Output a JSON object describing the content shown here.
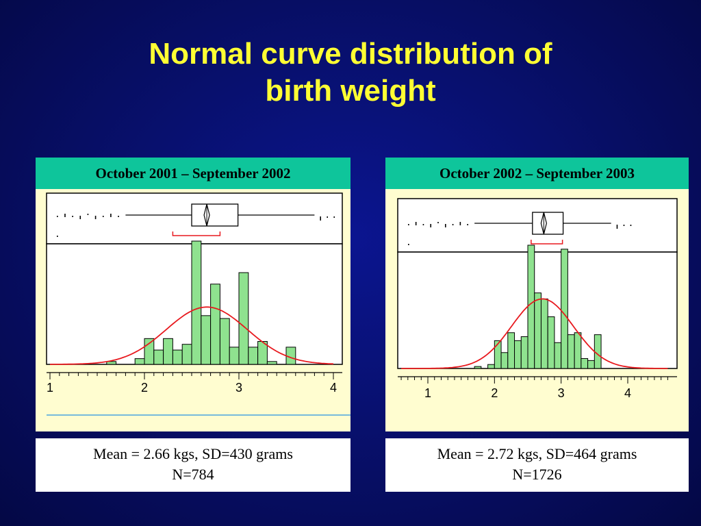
{
  "title": {
    "line1": "Normal curve distribution of",
    "line2": "birth weight"
  },
  "colors": {
    "background": "#08106e",
    "title": "#ffff33",
    "panel_header": "#0ec59b",
    "panel_bg": "#fffdd0",
    "bar_fill": "#8fe28f",
    "curve": "#e8191e",
    "median_bracket": "#e8191e"
  },
  "chart_data": [
    {
      "type": "bar",
      "title": "October 2001 – September 2002",
      "xlim": [
        1,
        4
      ],
      "x_ticks": [
        1,
        2,
        3,
        4
      ],
      "bin_width": 0.1,
      "bins": [
        {
          "x": 1.65,
          "count": 1
        },
        {
          "x": 1.95,
          "count": 2
        },
        {
          "x": 2.05,
          "count": 9
        },
        {
          "x": 2.15,
          "count": 5
        },
        {
          "x": 2.25,
          "count": 9
        },
        {
          "x": 2.35,
          "count": 5
        },
        {
          "x": 2.45,
          "count": 7
        },
        {
          "x": 2.55,
          "count": 43
        },
        {
          "x": 2.65,
          "count": 17
        },
        {
          "x": 2.75,
          "count": 28
        },
        {
          "x": 2.85,
          "count": 16
        },
        {
          "x": 2.95,
          "count": 6
        },
        {
          "x": 3.05,
          "count": 32
        },
        {
          "x": 3.15,
          "count": 6
        },
        {
          "x": 3.25,
          "count": 8
        },
        {
          "x": 3.35,
          "count": 1
        },
        {
          "x": 3.55,
          "count": 6
        }
      ],
      "normal_curve": {
        "mean": 2.66,
        "sd": 0.43,
        "peak_count": 20
      },
      "boxplot": {
        "q1": 2.5,
        "median": 2.66,
        "q3": 2.99,
        "whisker_low": 1.8,
        "whisker_high": 3.8
      },
      "median_ci": [
        2.3,
        2.8
      ],
      "stats_line1": "Mean = 2.66 kgs, SD=430 grams",
      "stats_line2": "N=784"
    },
    {
      "type": "bar",
      "title": "October 2002 – September 2003",
      "xlim": [
        0.6,
        4.6
      ],
      "x_ticks": [
        1,
        2,
        3,
        4
      ],
      "bin_width": 0.1,
      "bins": [
        {
          "x": 1.75,
          "count": 1
        },
        {
          "x": 1.95,
          "count": 2
        },
        {
          "x": 2.05,
          "count": 14
        },
        {
          "x": 2.15,
          "count": 8
        },
        {
          "x": 2.25,
          "count": 18
        },
        {
          "x": 2.35,
          "count": 14
        },
        {
          "x": 2.45,
          "count": 16
        },
        {
          "x": 2.55,
          "count": 62
        },
        {
          "x": 2.65,
          "count": 38
        },
        {
          "x": 2.75,
          "count": 35
        },
        {
          "x": 2.85,
          "count": 26
        },
        {
          "x": 2.95,
          "count": 13
        },
        {
          "x": 3.05,
          "count": 60
        },
        {
          "x": 3.15,
          "count": 17
        },
        {
          "x": 3.25,
          "count": 18
        },
        {
          "x": 3.35,
          "count": 5
        },
        {
          "x": 3.45,
          "count": 4
        },
        {
          "x": 3.55,
          "count": 17
        }
      ],
      "normal_curve": {
        "mean": 2.72,
        "sd": 0.464,
        "peak_count": 35
      },
      "boxplot": {
        "q1": 2.57,
        "median": 2.74,
        "q3": 3.03,
        "whisker_low": 1.7,
        "whisker_high": 3.75
      },
      "median_ci": [
        2.55,
        3.02
      ],
      "stats_line1": "Mean = 2.72 kgs, SD=464 grams",
      "stats_line2": "N=1726"
    }
  ]
}
